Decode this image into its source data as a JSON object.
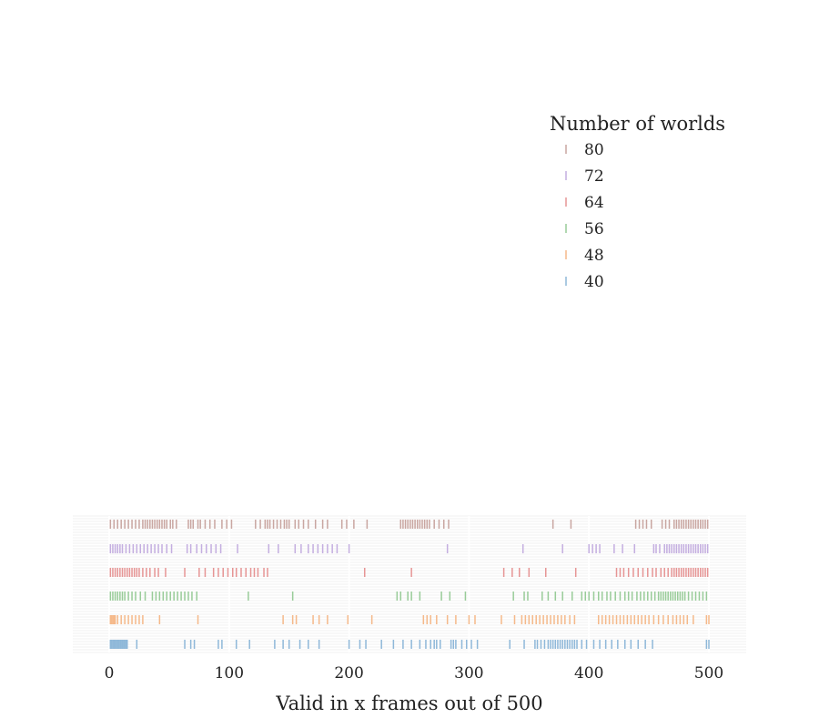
{
  "chart_data": {
    "type": "scatter",
    "subtype": "rug-strip",
    "xlabel": "Valid in x frames out of 500",
    "xlim": [
      0,
      500
    ],
    "xticks": [
      0,
      100,
      200,
      300,
      400,
      500
    ],
    "legend": {
      "title": "Number of worlds",
      "placement": "top-right"
    },
    "grid": true,
    "series": [
      {
        "name": "80",
        "color": "#c9a6a1",
        "values": [
          1,
          4,
          7,
          10,
          13,
          16,
          19,
          22,
          25,
          28,
          30,
          32,
          34,
          36,
          38,
          40,
          42,
          44,
          46,
          48,
          51,
          53,
          56,
          66,
          68,
          70,
          74,
          76,
          80,
          84,
          88,
          94,
          98,
          102,
          122,
          126,
          130,
          132,
          134,
          137,
          140,
          143,
          146,
          148,
          150,
          155,
          158,
          162,
          166,
          172,
          178,
          182,
          194,
          198,
          204,
          215,
          243,
          245,
          247,
          249,
          251,
          253,
          255,
          257,
          259,
          261,
          263,
          265,
          267,
          271,
          275,
          279,
          283,
          370,
          385,
          439,
          442,
          445,
          448,
          452,
          461,
          464,
          467,
          471,
          473,
          475,
          477,
          479,
          481,
          483,
          485,
          487,
          489,
          491,
          493,
          495,
          497,
          499
        ]
      },
      {
        "name": "72",
        "color": "#c4aee0",
        "values": [
          1,
          3,
          5,
          7,
          9,
          11,
          14,
          17,
          20,
          23,
          26,
          29,
          32,
          35,
          38,
          41,
          44,
          48,
          52,
          65,
          68,
          73,
          77,
          81,
          85,
          89,
          93,
          107,
          133,
          141,
          155,
          160,
          166,
          170,
          174,
          178,
          182,
          186,
          190,
          200,
          282,
          345,
          378,
          400,
          403,
          406,
          409,
          421,
          428,
          438,
          454,
          456,
          459,
          463,
          465,
          467,
          469,
          471,
          473,
          475,
          477,
          479,
          481,
          483,
          485,
          487,
          489,
          491,
          493,
          495,
          497,
          499
        ]
      },
      {
        "name": "64",
        "color": "#e69595",
        "values": [
          1,
          3,
          5,
          7,
          9,
          11,
          13,
          15,
          17,
          19,
          21,
          23,
          25,
          28,
          31,
          34,
          38,
          41,
          47,
          63,
          75,
          80,
          87,
          91,
          95,
          99,
          103,
          106,
          110,
          114,
          118,
          121,
          124,
          129,
          132,
          213,
          252,
          329,
          336,
          342,
          350,
          364,
          389,
          423,
          426,
          429,
          433,
          437,
          441,
          445,
          449,
          453,
          456,
          460,
          463,
          466,
          469,
          471,
          473,
          475,
          477,
          479,
          481,
          483,
          485,
          487,
          489,
          491,
          493,
          495,
          497,
          499
        ]
      },
      {
        "name": "56",
        "color": "#99cc99",
        "values": [
          1,
          3,
          5,
          7,
          9,
          11,
          13,
          16,
          19,
          22,
          26,
          30,
          36,
          39,
          42,
          45,
          48,
          51,
          54,
          57,
          60,
          63,
          66,
          69,
          73,
          116,
          153,
          240,
          243,
          249,
          252,
          259,
          277,
          284,
          297,
          337,
          346,
          349,
          361,
          366,
          372,
          378,
          386,
          394,
          397,
          400,
          404,
          408,
          411,
          415,
          418,
          422,
          426,
          430,
          433,
          436,
          440,
          443,
          446,
          449,
          452,
          455,
          458,
          460,
          462,
          464,
          466,
          468,
          470,
          472,
          474,
          476,
          478,
          480,
          483,
          486,
          489,
          492,
          495,
          498
        ]
      },
      {
        "name": "48",
        "color": "#f5b98a",
        "values": [
          1,
          2,
          3,
          4,
          5,
          7,
          10,
          13,
          16,
          19,
          22,
          25,
          28,
          42,
          74,
          145,
          153,
          156,
          170,
          175,
          182,
          199,
          219,
          262,
          265,
          268,
          273,
          282,
          289,
          300,
          305,
          327,
          338,
          344,
          347,
          350,
          353,
          356,
          359,
          362,
          365,
          368,
          371,
          374,
          377,
          380,
          384,
          388,
          408,
          411,
          414,
          417,
          420,
          423,
          426,
          429,
          432,
          435,
          438,
          441,
          444,
          447,
          450,
          454,
          458,
          462,
          466,
          470,
          473,
          476,
          479,
          482,
          487,
          498,
          500
        ]
      },
      {
        "name": "40",
        "color": "#8fb8d9",
        "values": [
          1,
          2,
          3,
          4,
          5,
          6,
          7,
          8,
          9,
          10,
          11,
          12,
          13,
          14,
          15,
          23,
          63,
          68,
          71,
          91,
          94,
          106,
          117,
          138,
          145,
          150,
          159,
          166,
          175,
          200,
          209,
          214,
          227,
          237,
          245,
          252,
          259,
          264,
          268,
          271,
          273,
          276,
          285,
          287,
          289,
          294,
          298,
          302,
          307,
          334,
          346,
          355,
          357,
          360,
          363,
          366,
          368,
          370,
          372,
          374,
          376,
          378,
          380,
          382,
          384,
          386,
          388,
          390,
          394,
          398,
          404,
          409,
          414,
          419,
          424,
          430,
          435,
          441,
          447,
          453,
          498,
          500
        ]
      }
    ]
  }
}
